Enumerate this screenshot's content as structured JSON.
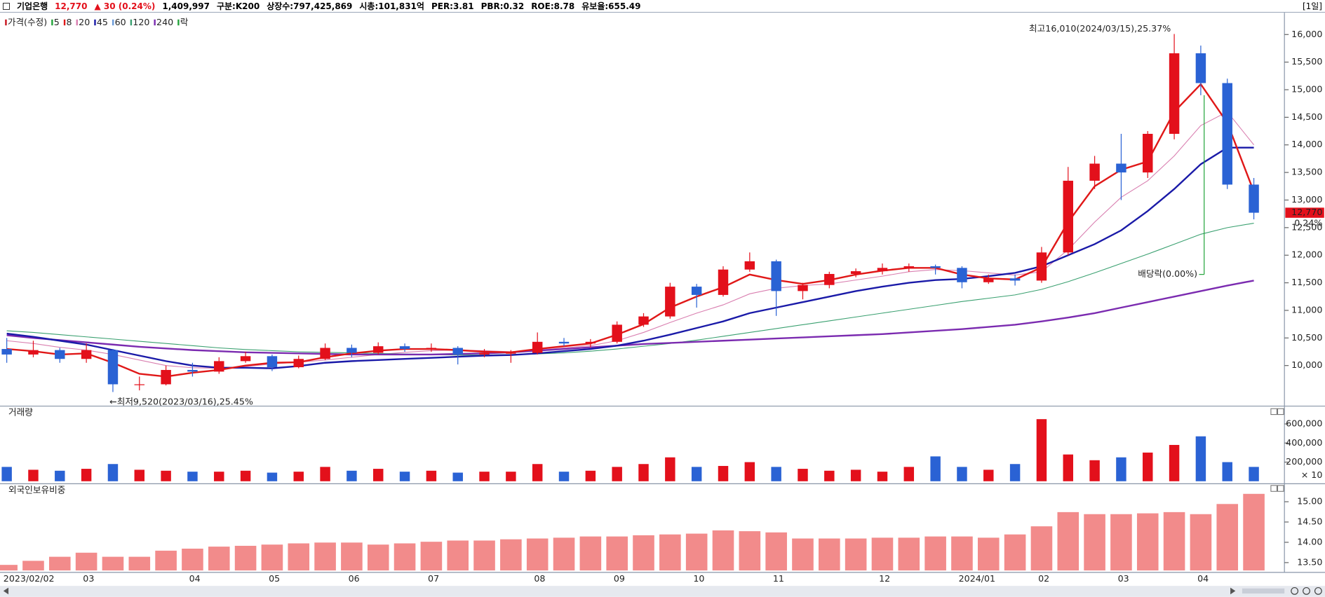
{
  "header": {
    "name": "기업은행",
    "price": "12,770",
    "change": "▲ 30 (0.24%)",
    "volume": "1,409,997",
    "info": [
      "구분:K200",
      "상장수:797,425,869",
      "시총:101,831억",
      "PER:3.81",
      "PBR:0.32",
      "ROE:8.78",
      "유보율:655.49"
    ],
    "period": "[1일]"
  },
  "chart_data": [
    {
      "type": "candlestick",
      "x": [
        "2023/02/02",
        null,
        null,
        "03",
        null,
        null,
        null,
        "04",
        null,
        null,
        "05",
        null,
        null,
        "06",
        null,
        null,
        "07",
        null,
        null,
        null,
        "08",
        null,
        null,
        "09",
        null,
        null,
        "10",
        null,
        null,
        "11",
        null,
        null,
        null,
        "12",
        null,
        null,
        "2024/01",
        null,
        null,
        "02",
        null,
        null,
        "03",
        null,
        null,
        "04",
        null,
        null
      ],
      "open": [
        10300,
        10200,
        10280,
        10120,
        10280,
        9660,
        9660,
        9920,
        9890,
        10080,
        10170,
        9970,
        10120,
        10320,
        10230,
        10350,
        10300,
        10320,
        10200,
        10230,
        10230,
        10430,
        10400,
        10430,
        10740,
        10890,
        11430,
        11280,
        11740,
        11890,
        11350,
        11460,
        11660,
        11710,
        11770,
        11800,
        11770,
        11510,
        11580,
        11540,
        12050,
        13350,
        13660,
        13500,
        14200,
        15660,
        15120,
        13280
      ],
      "high": [
        10500,
        10450,
        10320,
        10400,
        10300,
        9800,
        10000,
        10050,
        10150,
        10250,
        10200,
        10180,
        10400,
        10380,
        10420,
        10400,
        10400,
        10350,
        10300,
        10280,
        10600,
        10500,
        10480,
        10800,
        10950,
        11500,
        11480,
        11800,
        12050,
        11920,
        11500,
        11700,
        11760,
        11850,
        11850,
        11830,
        11800,
        11650,
        11650,
        12150,
        13600,
        13800,
        14200,
        14250,
        16010,
        15800,
        15200,
        13400
      ],
      "low": [
        10050,
        10150,
        10050,
        10050,
        9520,
        9550,
        9640,
        9800,
        9850,
        10050,
        9900,
        9950,
        10100,
        10150,
        10200,
        10250,
        10250,
        10020,
        10150,
        10050,
        10200,
        10350,
        10330,
        10400,
        10700,
        10850,
        11050,
        11250,
        11700,
        10900,
        11200,
        11400,
        11600,
        11650,
        11700,
        11650,
        11400,
        11480,
        11450,
        11500,
        12000,
        13200,
        13000,
        13400,
        14100,
        14900,
        13200,
        12650
      ],
      "close": [
        10200,
        10280,
        10120,
        10280,
        9660,
        9660,
        9920,
        9890,
        10080,
        10170,
        9970,
        10120,
        10320,
        10230,
        10350,
        10300,
        10320,
        10200,
        10230,
        10230,
        10430,
        10400,
        10430,
        10740,
        10890,
        11430,
        11280,
        11740,
        11890,
        11350,
        11460,
        11660,
        11710,
        11770,
        11800,
        11770,
        11510,
        11580,
        11540,
        12050,
        13350,
        13660,
        13500,
        14200,
        15660,
        15120,
        13280,
        12770
      ],
      "up_color": "#e3101b",
      "down_color": "#2a62d4",
      "legend": [
        {
          "label": "가격(수정)",
          "color": "#c8141e"
        },
        {
          "label": "5",
          "color": "#22a33a"
        },
        {
          "label": "8",
          "color": "#e01818"
        },
        {
          "label": "20",
          "color": "#d97fb0"
        },
        {
          "label": "45",
          "color": "#1a1aa8"
        },
        {
          "label": "60",
          "color": "#6a9ad8"
        },
        {
          "label": "120",
          "color": "#3aa070"
        },
        {
          "label": "240",
          "color": "#7b2bb0"
        },
        {
          "label": "락",
          "color": "#22a33a"
        }
      ],
      "lines": [
        {
          "color": "#d97fb0",
          "thick": false,
          "values": [
            10450,
            10400,
            10330,
            10280,
            10200,
            10100,
            10000,
            9960,
            9950,
            9980,
            10030,
            10060,
            10100,
            10150,
            10200,
            10240,
            10270,
            10280,
            10270,
            10250,
            10280,
            10320,
            10360,
            10450,
            10600,
            10780,
            10950,
            11100,
            11300,
            11400,
            11450,
            11480,
            11550,
            11620,
            11700,
            11740,
            11720,
            11680,
            11640,
            11700,
            12100,
            12600,
            13050,
            13350,
            13800,
            14350,
            14600,
            14000
          ]
        },
        {
          "color": "#3aa070",
          "thick": false,
          "values": [
            10630,
            10600,
            10560,
            10520,
            10480,
            10440,
            10400,
            10360,
            10320,
            10290,
            10270,
            10250,
            10240,
            10230,
            10220,
            10210,
            10200,
            10190,
            10190,
            10200,
            10210,
            10230,
            10260,
            10300,
            10350,
            10400,
            10460,
            10530,
            10600,
            10670,
            10740,
            10810,
            10880,
            10950,
            11020,
            11090,
            11160,
            11220,
            11280,
            11380,
            11520,
            11680,
            11850,
            12020,
            12200,
            12380,
            12500,
            12580
          ]
        },
        {
          "color": "#7b2bb0",
          "thick": true,
          "values": [
            10550,
            10500,
            10460,
            10420,
            10380,
            10340,
            10310,
            10280,
            10260,
            10240,
            10230,
            10220,
            10210,
            10200,
            10200,
            10200,
            10200,
            10210,
            10220,
            10240,
            10270,
            10300,
            10330,
            10360,
            10390,
            10410,
            10430,
            10450,
            10470,
            10490,
            10510,
            10530,
            10550,
            10570,
            10600,
            10630,
            10660,
            10700,
            10740,
            10800,
            10870,
            10950,
            11050,
            11150,
            11250,
            11350,
            11450,
            11540
          ]
        },
        {
          "color": "#1a1aa8",
          "thick": true,
          "values": [
            10580,
            10520,
            10450,
            10380,
            10280,
            10180,
            10080,
            10000,
            9960,
            9960,
            9950,
            9990,
            10050,
            10080,
            10100,
            10120,
            10140,
            10160,
            10180,
            10190,
            10220,
            10260,
            10300,
            10360,
            10450,
            10560,
            10680,
            10800,
            10950,
            11050,
            11150,
            11250,
            11350,
            11430,
            11500,
            11550,
            11570,
            11620,
            11680,
            11800,
            12000,
            12200,
            12450,
            12800,
            13200,
            13650,
            13950,
            13950
          ]
        },
        {
          "color": "#e01818",
          "thick": true,
          "values": [
            10300,
            10260,
            10200,
            10220,
            10050,
            9850,
            9800,
            9870,
            9920,
            10000,
            10050,
            10060,
            10150,
            10220,
            10270,
            10300,
            10300,
            10280,
            10250,
            10240,
            10300,
            10350,
            10400,
            10560,
            10750,
            11050,
            11250,
            11420,
            11650,
            11550,
            11480,
            11550,
            11650,
            11720,
            11770,
            11770,
            11650,
            11580,
            11560,
            11780,
            12600,
            13250,
            13550,
            13700,
            14600,
            15100,
            14400,
            13150
          ]
        }
      ],
      "ylim": [
        9280,
        16380
      ],
      "yticks": [
        {
          "value": 10000,
          "label": "10,000"
        },
        {
          "value": 10500,
          "label": "10,500"
        },
        {
          "value": 11000,
          "label": "11,000"
        },
        {
          "value": 11500,
          "label": "11,500"
        },
        {
          "value": 12000,
          "label": "12,000"
        },
        {
          "value": 12500,
          "label": "12,500"
        },
        {
          "value": 13000,
          "label": "13,000"
        },
        {
          "value": 13500,
          "label": "13,500"
        },
        {
          "value": 14000,
          "label": "14,000"
        },
        {
          "value": 14500,
          "label": "14,500"
        },
        {
          "value": 15000,
          "label": "15,000"
        },
        {
          "value": 15500,
          "label": "15,500"
        },
        {
          "value": 16000,
          "label": "16,000"
        }
      ],
      "high_note": "최고16,010(2024/03/15),25.37%",
      "low_note": "←최저9,520(2023/03/16),25.45%",
      "dividend_note": "배당락(0.00%)",
      "tag_change": "0.24%"
    },
    {
      "type": "volume",
      "title": "거래량",
      "unit_label": "× 10",
      "values": [
        150000,
        120000,
        110000,
        130000,
        180000,
        120000,
        110000,
        100000,
        100000,
        110000,
        90000,
        100000,
        150000,
        110000,
        130000,
        100000,
        110000,
        90000,
        100000,
        100000,
        180000,
        100000,
        110000,
        150000,
        180000,
        250000,
        150000,
        160000,
        200000,
        150000,
        130000,
        110000,
        120000,
        100000,
        150000,
        260000,
        150000,
        120000,
        180000,
        650000,
        280000,
        220000,
        250000,
        300000,
        380000,
        470000,
        200000,
        150000
      ],
      "ylim": [
        0,
        760000
      ],
      "yticks": [
        {
          "value": 200000,
          "label": "200,000"
        },
        {
          "value": 400000,
          "label": "400,000"
        },
        {
          "value": 600000,
          "label": "600,000"
        }
      ]
    },
    {
      "type": "bar",
      "title": "외국인보유비중",
      "color": "#f28b8b",
      "values": [
        13.45,
        13.55,
        13.65,
        13.75,
        13.65,
        13.65,
        13.8,
        13.85,
        13.9,
        13.92,
        13.95,
        13.98,
        14,
        14,
        13.95,
        13.98,
        14.02,
        14.05,
        14.05,
        14.08,
        14.1,
        14.12,
        14.15,
        14.15,
        14.18,
        14.2,
        14.22,
        14.3,
        14.28,
        14.25,
        14.1,
        14.1,
        14.1,
        14.12,
        14.12,
        14.15,
        14.15,
        14.12,
        14.2,
        14.4,
        14.75,
        14.7,
        14.7,
        14.72,
        14.75,
        14.7,
        14.95,
        15.2
      ],
      "ylim": [
        13.3,
        15.38
      ],
      "yticks": [
        {
          "value": 13.5,
          "label": "13.50"
        },
        {
          "value": 14,
          "label": "14.00"
        },
        {
          "value": 14.5,
          "label": "14.50"
        },
        {
          "value": 15,
          "label": "15.00"
        }
      ]
    }
  ]
}
